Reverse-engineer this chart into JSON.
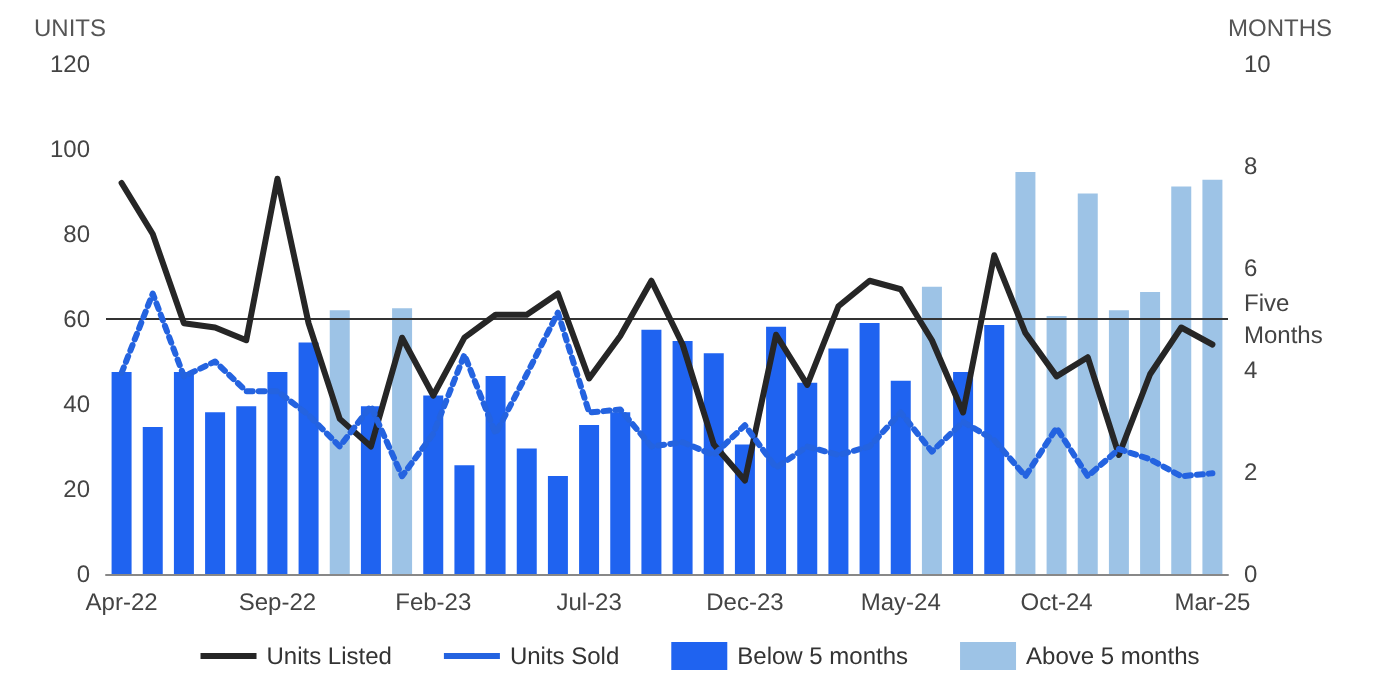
{
  "chart_data": {
    "type": "bar",
    "categories": [
      "Apr-22",
      null,
      null,
      null,
      null,
      "Sep-22",
      null,
      null,
      null,
      null,
      "Feb-23",
      null,
      null,
      null,
      null,
      "Jul-23",
      null,
      null,
      null,
      null,
      "Dec-23",
      null,
      null,
      null,
      null,
      "May-24",
      null,
      null,
      null,
      null,
      "Oct-24",
      null,
      null,
      null,
      null,
      "Mar-25"
    ],
    "series": [
      {
        "name": "Units Listed",
        "type": "line",
        "color": "#262626",
        "line_style": "solid",
        "values": [
          92,
          80,
          59,
          58,
          55,
          93,
          59,
          36.5,
          30,
          55.6,
          42,
          55.6,
          61,
          61,
          66,
          46,
          56,
          69,
          54,
          30.5,
          22,
          56.3,
          44.5,
          63,
          69,
          67,
          55,
          38,
          75,
          56.7,
          46.5,
          51,
          28,
          47,
          58,
          54
        ]
      },
      {
        "name": "Units Sold",
        "type": "line",
        "color": "#2463e0",
        "line_style": "dotted",
        "values": [
          47.3,
          66,
          46.5,
          50,
          43,
          43,
          37.4,
          30,
          39.5,
          23,
          33,
          51.6,
          33,
          47,
          61.5,
          38,
          38.7,
          30,
          31,
          28,
          35,
          25,
          30,
          28,
          30,
          38,
          28.8,
          35.8,
          31.5,
          23,
          34.4,
          23,
          29.4,
          27,
          23,
          23.7
        ]
      },
      {
        "name": "Below 5 months",
        "axis": "y2",
        "color": "#1f63f0",
        "values": [
          3.96,
          2.88,
          3.96,
          3.17,
          3.29,
          3.96,
          4.54,
          null,
          3.29,
          null,
          3.5,
          2.13,
          3.88,
          2.46,
          1.92,
          2.92,
          3.17,
          4.79,
          4.57,
          4.33,
          2.54,
          4.85,
          3.75,
          4.42,
          4.92,
          3.79,
          null,
          3.96,
          4.88,
          null,
          null,
          null,
          null,
          null,
          null,
          null
        ]
      },
      {
        "name": "Above 5 months",
        "axis": "y2",
        "color": "#9dc3e6",
        "values": [
          null,
          null,
          null,
          null,
          null,
          null,
          null,
          5.17,
          null,
          5.21,
          null,
          null,
          null,
          null,
          null,
          null,
          null,
          null,
          null,
          null,
          null,
          null,
          null,
          null,
          null,
          null,
          5.63,
          null,
          null,
          7.88,
          5.06,
          7.46,
          5.17,
          5.53,
          7.6,
          7.73
        ]
      }
    ],
    "ylabel": "UNITS",
    "y2label": "MONTHS",
    "ylim": [
      0,
      120
    ],
    "yticks": [
      0,
      20,
      40,
      60,
      80,
      100,
      120
    ],
    "y2lim": [
      0,
      10
    ],
    "y2ticks": [
      0,
      2,
      4,
      6,
      8,
      10
    ],
    "ref_lines": [
      {
        "axis": "y2",
        "value": 5,
        "label": "Five Months",
        "color": "#333333"
      }
    ],
    "grid": false,
    "legend": "bottom",
    "marker": "none"
  }
}
